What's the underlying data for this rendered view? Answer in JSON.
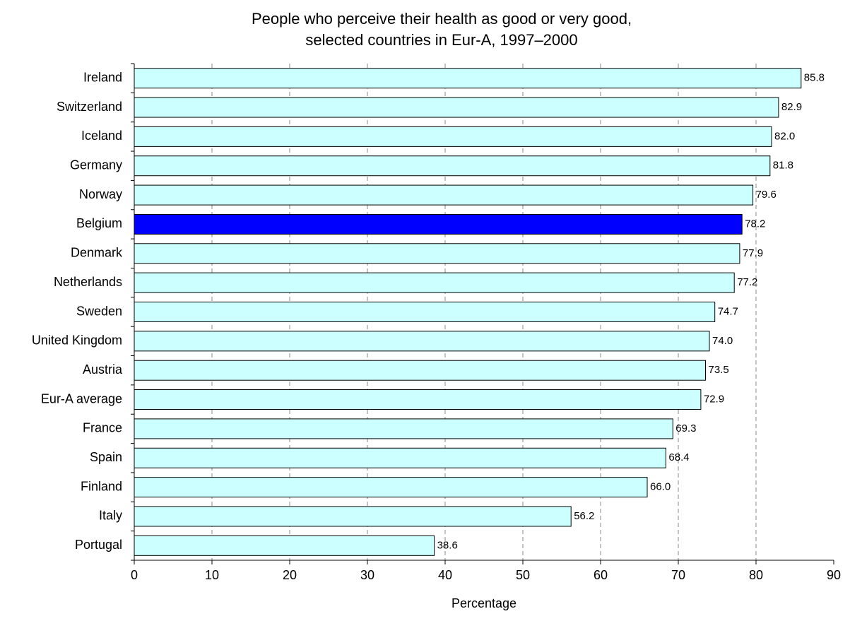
{
  "chart_data": {
    "type": "barh",
    "title": [
      "People who perceive their health as good or very good,",
      "selected countries in Eur-A, 1997–2000"
    ],
    "x_label": "Percentage",
    "categories": [
      "Ireland",
      "Switzerland",
      "Iceland",
      "Germany",
      "Norway",
      "Belgium",
      "Denmark",
      "Netherlands",
      "Sweden",
      "United Kingdom",
      "Austria",
      "Eur-A average",
      "France",
      "Spain",
      "Finland",
      "Italy",
      "Portugal"
    ],
    "values": [
      85.8,
      82.9,
      82,
      81.8,
      79.6,
      78.2,
      77.9,
      77.2,
      74.7,
      74,
      73.5,
      72.9,
      69.3,
      68.4,
      66,
      56.2,
      38.6
    ],
    "value_labels": [
      "85.8",
      "82.9",
      "82.0",
      "81.8",
      "79.6",
      "78.2",
      "77.9",
      "77.2",
      "74.7",
      "74.0",
      "73.5",
      "72.9",
      "69.3",
      "68.4",
      "66.0",
      "56.2",
      "38.6"
    ],
    "colors": [
      "#ccffff",
      "#ccffff",
      "#ccffff",
      "#ccffff",
      "#ccffff",
      "#0000ff",
      "#ccffff",
      "#ccffff",
      "#ccffff",
      "#ccffff",
      "#ccffff",
      "#ccffff",
      "#ccffff",
      "#ccffff",
      "#ccffff",
      "#ccffff",
      "#ccffff"
    ],
    "xlim": [
      0,
      90
    ],
    "xticks": [
      0,
      10,
      20,
      30,
      40,
      50,
      60,
      70,
      80,
      90
    ],
    "grid": true
  }
}
